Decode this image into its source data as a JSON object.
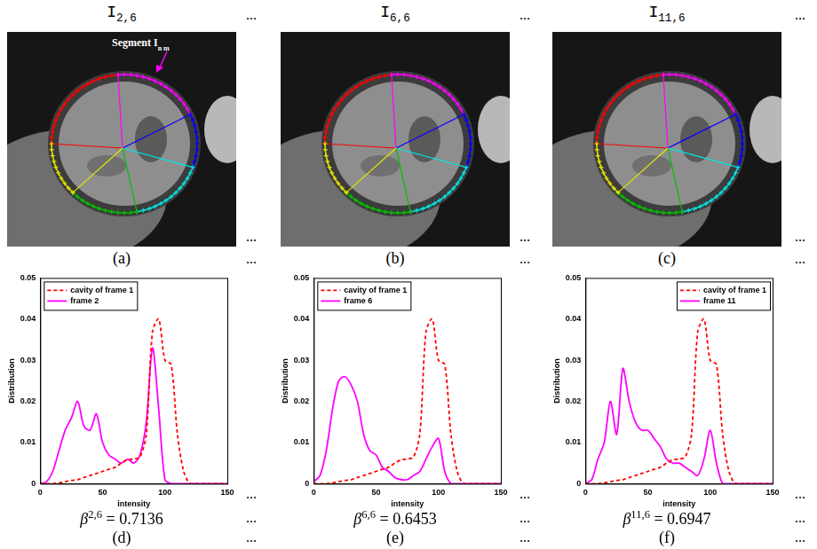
{
  "column_heads": [
    {
      "base": "I",
      "sub": "2,6"
    },
    {
      "base": "I",
      "sub": "6,6"
    },
    {
      "base": "I",
      "sub": "11,6"
    }
  ],
  "ellipsis": "...",
  "panels": [
    {
      "caption": "(a)",
      "annotation": {
        "text": "Segment I",
        "sub": "n m"
      }
    },
    {
      "caption": "(b)"
    },
    {
      "caption": "(c)"
    }
  ],
  "chart_data": [
    {
      "type": "line",
      "caption": "(d)",
      "beta": {
        "symbol": "β",
        "sup": "2,6",
        "sign": "=",
        "value": 0.7136
      },
      "x_label": "intensity",
      "y_label": "Distribution",
      "xlim": [
        0,
        150
      ],
      "ylim": [
        0,
        0.05
      ],
      "xticks": [
        0,
        50,
        100,
        150
      ],
      "yticks": [
        0,
        0.01,
        0.02,
        0.03,
        0.04,
        0.05
      ],
      "grid": false,
      "legend": "upper left",
      "x": [
        0,
        5,
        10,
        15,
        20,
        25,
        30,
        35,
        40,
        45,
        50,
        55,
        60,
        65,
        70,
        75,
        80,
        85,
        90,
        95,
        100,
        105,
        110,
        115,
        120,
        125,
        130,
        135,
        140,
        145,
        150
      ],
      "series": [
        {
          "name": "cavity of frame 1",
          "color": "#ff0000",
          "line_style": "dashed",
          "values": [
            0,
            0,
            0,
            0.0002,
            0.0005,
            0.0008,
            0.001,
            0.0015,
            0.002,
            0.0025,
            0.003,
            0.0035,
            0.004,
            0.005,
            0.0058,
            0.006,
            0.0065,
            0.012,
            0.037,
            0.04,
            0.03,
            0.029,
            0.012,
            0.003,
            0,
            0,
            0,
            0,
            0,
            0,
            0
          ]
        },
        {
          "name": "frame 2",
          "color": "#ff00ff",
          "line_style": "solid",
          "values": [
            0,
            0.0005,
            0.003,
            0.008,
            0.013,
            0.016,
            0.02,
            0.014,
            0.013,
            0.017,
            0.01,
            0.007,
            0.006,
            0.005,
            0.006,
            0.005,
            0.007,
            0.015,
            0.033,
            0.018,
            0.001,
            0,
            0,
            0,
            0,
            0,
            0,
            0,
            0,
            0,
            0
          ]
        }
      ]
    },
    {
      "type": "line",
      "caption": "(e)",
      "beta": {
        "symbol": "β",
        "sup": "6,6",
        "sign": "=",
        "value": 0.6453
      },
      "x_label": "intensity",
      "y_label": "Distribution",
      "xlim": [
        0,
        150
      ],
      "ylim": [
        0,
        0.05
      ],
      "xticks": [
        0,
        50,
        100,
        150
      ],
      "yticks": [
        0,
        0.01,
        0.02,
        0.03,
        0.04,
        0.05
      ],
      "grid": false,
      "legend": "upper left",
      "x": [
        0,
        5,
        10,
        15,
        20,
        25,
        30,
        35,
        40,
        45,
        50,
        55,
        60,
        65,
        70,
        75,
        80,
        85,
        90,
        95,
        100,
        105,
        110,
        115,
        120,
        125,
        130,
        135,
        140,
        145,
        150
      ],
      "series": [
        {
          "name": "cavity of frame 1",
          "color": "#ff0000",
          "line_style": "dashed",
          "values": [
            0,
            0,
            0,
            0.0002,
            0.0005,
            0.0008,
            0.001,
            0.0015,
            0.002,
            0.0025,
            0.003,
            0.0035,
            0.004,
            0.005,
            0.0058,
            0.006,
            0.0065,
            0.012,
            0.037,
            0.04,
            0.03,
            0.029,
            0.012,
            0.003,
            0,
            0,
            0,
            0,
            0,
            0,
            0
          ]
        },
        {
          "name": "frame 6",
          "color": "#ff00ff",
          "line_style": "solid",
          "values": [
            0.0005,
            0.002,
            0.008,
            0.018,
            0.025,
            0.026,
            0.024,
            0.02,
            0.012,
            0.008,
            0.007,
            0.004,
            0.003,
            0.0015,
            0.001,
            0.001,
            0.002,
            0.003,
            0.006,
            0.009,
            0.011,
            0.003,
            0,
            0,
            0,
            0,
            0,
            0,
            0,
            0,
            0
          ]
        }
      ]
    },
    {
      "type": "line",
      "caption": "(f)",
      "beta": {
        "symbol": "β",
        "sup": "11,6",
        "sign": "=",
        "value": 0.6947
      },
      "x_label": "intensity",
      "y_label": "Distribution",
      "xlim": [
        0,
        150
      ],
      "ylim": [
        0,
        0.05
      ],
      "xticks": [
        0,
        50,
        100,
        150
      ],
      "yticks": [
        0,
        0.01,
        0.02,
        0.03,
        0.04,
        0.05
      ],
      "grid": false,
      "legend": "upper right",
      "x": [
        0,
        5,
        10,
        15,
        20,
        25,
        30,
        35,
        40,
        45,
        50,
        55,
        60,
        65,
        70,
        75,
        80,
        85,
        90,
        95,
        100,
        105,
        110,
        115,
        120,
        125,
        130,
        135,
        140,
        145,
        150
      ],
      "series": [
        {
          "name": "cavity of frame 1",
          "color": "#ff0000",
          "line_style": "dashed",
          "values": [
            0,
            0,
            0,
            0.0002,
            0.0005,
            0.0008,
            0.001,
            0.0015,
            0.002,
            0.0025,
            0.003,
            0.0035,
            0.004,
            0.005,
            0.0058,
            0.006,
            0.0065,
            0.012,
            0.037,
            0.04,
            0.03,
            0.029,
            0.012,
            0.003,
            0,
            0,
            0,
            0,
            0,
            0,
            0
          ]
        },
        {
          "name": "frame 11",
          "color": "#ff00ff",
          "line_style": "solid",
          "values": [
            0,
            0.001,
            0.006,
            0.01,
            0.02,
            0.012,
            0.028,
            0.02,
            0.015,
            0.013,
            0.013,
            0.011,
            0.009,
            0.006,
            0.005,
            0.005,
            0.004,
            0.003,
            0.002,
            0.006,
            0.013,
            0.005,
            0,
            0,
            0,
            0,
            0,
            0,
            0,
            0,
            0
          ]
        }
      ]
    }
  ]
}
